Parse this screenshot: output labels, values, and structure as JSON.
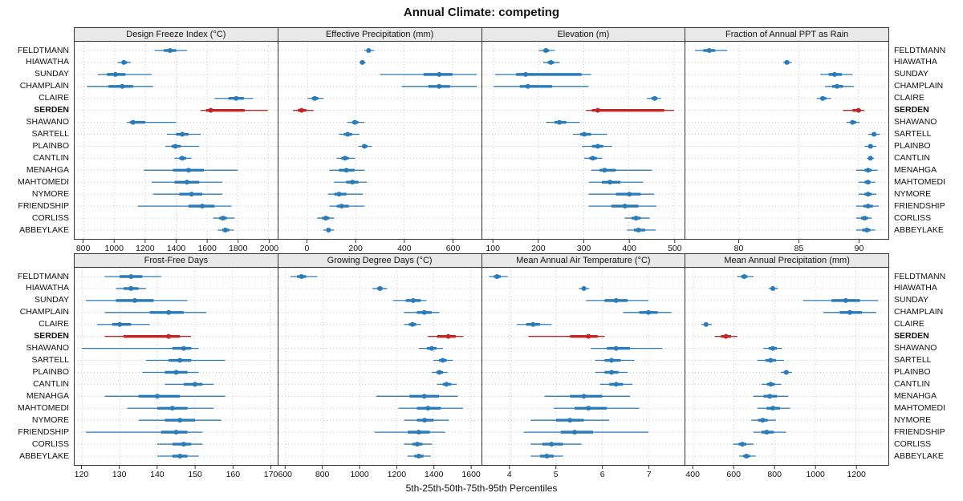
{
  "title": "Annual Climate: competing",
  "caption": "5th-25th-50th-75th-95th Percentiles",
  "stations": [
    "FELDTMANN",
    "HIAWATHA",
    "SUNDAY",
    "CHAMPLAIN",
    "CLAIRE",
    "SERDEN",
    "SHAWANO",
    "SARTELL",
    "PLAINBO",
    "CANTLIN",
    "MENAHGA",
    "MAHTOMEDI",
    "NYMORE",
    "FRIENDSHIP",
    "CORLISS",
    "ABBEYLAKE"
  ],
  "highlight_station": "SERDEN",
  "percentiles": [
    5,
    25,
    50,
    75,
    95
  ],
  "colors": {
    "series": "#2b7bb9",
    "highlight": "#bf2626",
    "strip_bg": "#e9e9e9",
    "grid": "#c9c9c9",
    "border": "#333333"
  },
  "chart_data": [
    {
      "type": "dotplot",
      "title": "Design Freeze Index (°C)",
      "xlim": [
        740,
        2060
      ],
      "xticks": [
        800,
        1000,
        1200,
        1400,
        1600,
        1800,
        2000
      ],
      "values": [
        [
          1260,
          1320,
          1360,
          1400,
          1470
        ],
        [
          1020,
          1045,
          1060,
          1080,
          1105
        ],
        [
          890,
          950,
          1005,
          1070,
          1240
        ],
        [
          820,
          960,
          1050,
          1120,
          1250
        ],
        [
          1650,
          1740,
          1790,
          1840,
          1900
        ],
        [
          1560,
          1595,
          1625,
          1845,
          1995
        ],
        [
          1080,
          1100,
          1120,
          1200,
          1400
        ],
        [
          1340,
          1400,
          1440,
          1480,
          1560
        ],
        [
          1330,
          1370,
          1395,
          1430,
          1550
        ],
        [
          1390,
          1420,
          1440,
          1465,
          1500
        ],
        [
          1190,
          1380,
          1480,
          1580,
          1800
        ],
        [
          1240,
          1390,
          1470,
          1550,
          1700
        ],
        [
          1250,
          1420,
          1500,
          1570,
          1700
        ],
        [
          1150,
          1480,
          1570,
          1650,
          1760
        ],
        [
          1640,
          1680,
          1705,
          1730,
          1780
        ],
        [
          1670,
          1700,
          1720,
          1745,
          1775
        ]
      ]
    },
    {
      "type": "dotplot",
      "title": "Effective Precipitation (mm)",
      "xlim": [
        -120,
        720
      ],
      "xticks": [
        0,
        200,
        400,
        600
      ],
      "values": [
        [
          235,
          246,
          253,
          261,
          276
        ],
        [
          215,
          222,
          227,
          233,
          241
        ],
        [
          300,
          480,
          545,
          600,
          700
        ],
        [
          390,
          500,
          545,
          590,
          700
        ],
        [
          0,
          18,
          30,
          45,
          66
        ],
        [
          -60,
          -40,
          -25,
          -5,
          25
        ],
        [
          165,
          185,
          196,
          210,
          236
        ],
        [
          130,
          150,
          166,
          185,
          215
        ],
        [
          210,
          226,
          236,
          248,
          266
        ],
        [
          120,
          140,
          155,
          171,
          196
        ],
        [
          90,
          130,
          161,
          195,
          236
        ],
        [
          110,
          160,
          186,
          211,
          246
        ],
        [
          85,
          111,
          131,
          161,
          230
        ],
        [
          90,
          121,
          141,
          171,
          236
        ],
        [
          40,
          60,
          76,
          91,
          111
        ],
        [
          65,
          78,
          87,
          96,
          111
        ]
      ]
    },
    {
      "type": "dotplot",
      "title": "Elevation (m)",
      "xlim": [
        75,
        525
      ],
      "xticks": [
        100,
        200,
        300,
        400,
        500
      ],
      "values": [
        [
          200,
          210,
          216,
          223,
          236
        ],
        [
          210,
          220,
          227,
          234,
          246
        ],
        [
          103,
          150,
          171,
          295,
          316
        ],
        [
          100,
          158,
          176,
          230,
          310
        ],
        [
          440,
          450,
          457,
          463,
          471
        ],
        [
          305,
          318,
          331,
          478,
          500
        ],
        [
          216,
          235,
          246,
          261,
          291
        ],
        [
          276,
          292,
          301,
          316,
          351
        ],
        [
          296,
          318,
          331,
          343,
          363
        ],
        [
          301,
          312,
          320,
          329,
          341
        ],
        [
          316,
          335,
          346,
          371,
          451
        ],
        [
          311,
          340,
          358,
          381,
          431
        ],
        [
          311,
          371,
          401,
          426,
          456
        ],
        [
          311,
          361,
          391,
          421,
          461
        ],
        [
          391,
          406,
          416,
          426,
          446
        ],
        [
          396,
          411,
          421,
          436,
          459
        ]
      ]
    },
    {
      "type": "dotplot",
      "title": "Fraction of Annual PPT as Rain",
      "xlim": [
        75.5,
        92.5
      ],
      "xticks": [
        80,
        85,
        90
      ],
      "values": [
        [
          76.3,
          77.0,
          77.5,
          78.0,
          79.0
        ],
        [
          83.7,
          83.9,
          84.0,
          84.2,
          84.4
        ],
        [
          86.8,
          87.5,
          88.0,
          88.6,
          89.5
        ],
        [
          87.2,
          87.8,
          88.2,
          88.7,
          89.6
        ],
        [
          86.5,
          86.8,
          87.0,
          87.3,
          87.7
        ],
        [
          88.7,
          89.5,
          90.0,
          90.2,
          90.5
        ],
        [
          89.0,
          89.3,
          89.5,
          89.8,
          90.1
        ],
        [
          90.8,
          91.1,
          91.3,
          91.5,
          91.8
        ],
        [
          90.5,
          90.8,
          91.0,
          91.2,
          91.5
        ],
        [
          90.7,
          90.9,
          91.0,
          91.1,
          91.3
        ],
        [
          89.8,
          90.5,
          90.8,
          91.1,
          91.6
        ],
        [
          90.0,
          90.5,
          90.8,
          91.0,
          91.4
        ],
        [
          90.0,
          90.5,
          90.8,
          91.1,
          91.5
        ],
        [
          89.8,
          90.4,
          90.8,
          91.2,
          91.7
        ],
        [
          89.8,
          90.2,
          90.5,
          90.8,
          91.1
        ],
        [
          89.8,
          90.3,
          90.7,
          91.0,
          91.4
        ]
      ]
    },
    {
      "type": "dotplot",
      "title": "Frost-Free Days",
      "xlim": [
        118,
        172
      ],
      "xticks": [
        120,
        130,
        140,
        150,
        160,
        170
      ],
      "values": [
        [
          126,
          130,
          133,
          136,
          141
        ],
        [
          129,
          131,
          133,
          135,
          137
        ],
        [
          121,
          129,
          134,
          139,
          148
        ],
        [
          126,
          138,
          143,
          147,
          153
        ],
        [
          124,
          128,
          130,
          133,
          138
        ],
        [
          126,
          131,
          143,
          146,
          149
        ],
        [
          120,
          144,
          147,
          149,
          151
        ],
        [
          137,
          143,
          146,
          149,
          158
        ],
        [
          136,
          142,
          145,
          148,
          151
        ],
        [
          142,
          147,
          150,
          152,
          155
        ],
        [
          126,
          135,
          140,
          146,
          158
        ],
        [
          132,
          140,
          144,
          148,
          155
        ],
        [
          135,
          142,
          146,
          150,
          157
        ],
        [
          121,
          141,
          145,
          148,
          152
        ],
        [
          140,
          144,
          147,
          149,
          152
        ],
        [
          140,
          144,
          146,
          148,
          151
        ]
      ]
    },
    {
      "type": "dotplot",
      "title": "Growing Degree Days (°C)",
      "xlim": [
        560,
        1660
      ],
      "xticks": [
        600,
        800,
        1000,
        1200,
        1400,
        1600
      ],
      "values": [
        [
          625,
          660,
          685,
          710,
          770
        ],
        [
          1070,
          1095,
          1110,
          1125,
          1148
        ],
        [
          1180,
          1250,
          1290,
          1330,
          1362
        ],
        [
          1240,
          1310,
          1350,
          1390,
          1432
        ],
        [
          1240,
          1266,
          1286,
          1306,
          1332
        ],
        [
          1370,
          1420,
          1480,
          1520,
          1562
        ],
        [
          1320,
          1365,
          1390,
          1416,
          1452
        ],
        [
          1400,
          1430,
          1450,
          1472,
          1506
        ],
        [
          1390,
          1415,
          1432,
          1452,
          1476
        ],
        [
          1420,
          1450,
          1470,
          1496,
          1526
        ],
        [
          1090,
          1270,
          1350,
          1430,
          1532
        ],
        [
          1210,
          1310,
          1370,
          1440,
          1560
        ],
        [
          1240,
          1310,
          1352,
          1400,
          1482
        ],
        [
          1080,
          1260,
          1320,
          1380,
          1462
        ],
        [
          1240,
          1286,
          1312,
          1340,
          1392
        ],
        [
          1260,
          1296,
          1320,
          1346,
          1386
        ]
      ]
    },
    {
      "type": "dotplot",
      "title": "Mean Annual Air Temperature (°C)",
      "xlim": [
        3.4,
        7.8
      ],
      "xticks": [
        4,
        5,
        6,
        7
      ],
      "values": [
        [
          3.55,
          3.65,
          3.72,
          3.8,
          3.95
        ],
        [
          5.5,
          5.56,
          5.6,
          5.65,
          5.72
        ],
        [
          5.65,
          6.05,
          6.3,
          6.55,
          7.0
        ],
        [
          6.45,
          6.8,
          7.0,
          7.2,
          7.5
        ],
        [
          4.15,
          4.35,
          4.5,
          4.65,
          4.9
        ],
        [
          4.4,
          5.3,
          5.7,
          5.9,
          6.05
        ],
        [
          5.75,
          6.1,
          6.3,
          6.6,
          7.3
        ],
        [
          5.85,
          6.05,
          6.2,
          6.4,
          6.7
        ],
        [
          5.85,
          6.05,
          6.2,
          6.35,
          6.55
        ],
        [
          5.95,
          6.15,
          6.3,
          6.45,
          6.65
        ],
        [
          4.75,
          5.3,
          5.6,
          6.0,
          6.6
        ],
        [
          4.95,
          5.4,
          5.7,
          6.1,
          6.8
        ],
        [
          4.45,
          5.0,
          5.3,
          5.6,
          6.15
        ],
        [
          4.3,
          5.1,
          5.4,
          5.8,
          7.0
        ],
        [
          4.45,
          4.7,
          4.9,
          5.15,
          5.55
        ],
        [
          4.45,
          4.65,
          4.8,
          4.95,
          5.15
        ]
      ]
    },
    {
      "type": "dotplot",
      "title": "Mean Annual Precipitation (mm)",
      "xlim": [
        360,
        1360
      ],
      "xticks": [
        400,
        600,
        800,
        1000,
        1200
      ],
      "values": [
        [
          615,
          635,
          650,
          666,
          696
        ],
        [
          770,
          782,
          791,
          801,
          816
        ],
        [
          940,
          1080,
          1150,
          1220,
          1310
        ],
        [
          1040,
          1120,
          1170,
          1230,
          1300
        ],
        [
          440,
          452,
          462,
          472,
          490
        ],
        [
          505,
          535,
          560,
          585,
          616
        ],
        [
          745,
          770,
          791,
          811,
          836
        ],
        [
          715,
          755,
          780,
          806,
          846
        ],
        [
          830,
          845,
          857,
          868,
          886
        ],
        [
          735,
          762,
          781,
          801,
          832
        ],
        [
          695,
          745,
          776,
          811,
          866
        ],
        [
          715,
          760,
          791,
          826,
          876
        ],
        [
          685,
          718,
          741,
          766,
          806
        ],
        [
          695,
          735,
          761,
          796,
          856
        ],
        [
          595,
          622,
          641,
          661,
          696
        ],
        [
          625,
          645,
          661,
          678,
          706
        ]
      ]
    }
  ]
}
